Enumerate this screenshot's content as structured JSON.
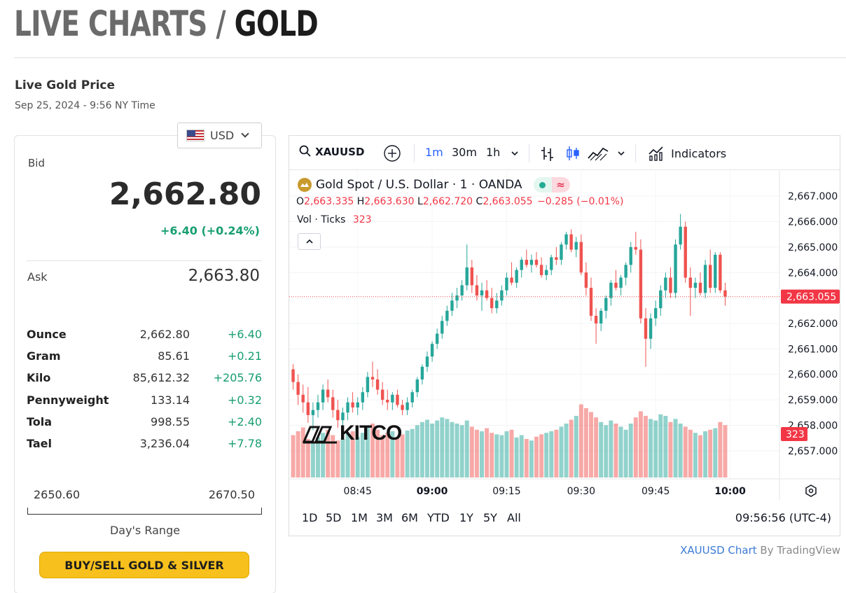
{
  "page": {
    "title_part1": "LIVE CHARTS / ",
    "title_part2": "GOLD"
  },
  "live": {
    "title": "Live Gold Price",
    "timestamp": "Sep 25, 2024 - 9:56 NY Time"
  },
  "currency": {
    "selected": "USD",
    "flag_icon": "us-flag-icon"
  },
  "quote": {
    "bid_label": "Bid",
    "bid": "2,662.80",
    "change": "+6.40 (+0.24%)",
    "ask_label": "Ask",
    "ask": "2,663.80"
  },
  "units": [
    {
      "name": "Ounce",
      "price": "2,662.80",
      "change": "+6.40"
    },
    {
      "name": "Gram",
      "price": "85.61",
      "change": "+0.21"
    },
    {
      "name": "Kilo",
      "price": "85,612.32",
      "change": "+205.76"
    },
    {
      "name": "Pennyweight",
      "price": "133.14",
      "change": "+0.32"
    },
    {
      "name": "Tola",
      "price": "998.55",
      "change": "+2.40"
    },
    {
      "name": "Tael",
      "price": "3,236.04",
      "change": "+7.78"
    }
  ],
  "day_range": {
    "low": "2650.60",
    "high": "2670.50",
    "label": "Day's Range"
  },
  "buy_button": "BUY/SELL GOLD & SILVER",
  "colors": {
    "up": "#26a69a",
    "down": "#ef5350",
    "accent_gold": "#f7c01c",
    "positive_text": "#189e72",
    "active_blue": "#2962ff"
  },
  "toolbar": {
    "symbol": "XAUUSD",
    "intervals": [
      "1m",
      "30m",
      "1h"
    ],
    "active_interval": "1m",
    "indicators_label": "Indicators"
  },
  "legend": {
    "title": "Gold Spot / U.S. Dollar · 1 · OANDA",
    "o_label": "O",
    "o": "2,663.335",
    "h_label": "H",
    "h": "2,663.630",
    "l_label": "L",
    "l": "2,662.720",
    "c_label": "C",
    "c": "2,663.055",
    "chg": "−0.285 (−0.01%)",
    "vol_label": "Vol · Ticks",
    "vol": "323"
  },
  "watermark": "KITCO",
  "chart_data": {
    "type": "candlestick",
    "symbol": "XAUUSD",
    "y_ticks": [
      "2,667.000",
      "2,666.000",
      "2,665.000",
      "2,664.000",
      "2,663.000",
      "2,662.000",
      "2,661.000",
      "2,660.000",
      "2,659.000",
      "2,658.000",
      "2,657.000"
    ],
    "ylim": [
      2656.5,
      2667.5
    ],
    "x_ticks": [
      "08:45",
      "09:00",
      "09:15",
      "09:30",
      "09:45",
      "10:00"
    ],
    "bold_x_ticks": [
      "09:00",
      "10:00"
    ],
    "last_price": 2663.055,
    "last_price_label": "2,663.055",
    "last_volume_label": "323",
    "candles": [
      [
        2660.2,
        2660.4,
        2659.4,
        2659.7
      ],
      [
        2659.7,
        2660.0,
        2658.8,
        2659.2
      ],
      [
        2659.2,
        2659.6,
        2658.5,
        2658.9
      ],
      [
        2658.9,
        2659.5,
        2658.1,
        2658.4
      ],
      [
        2658.4,
        2658.9,
        2657.8,
        2658.6
      ],
      [
        2658.6,
        2659.2,
        2658.3,
        2658.9
      ],
      [
        2658.9,
        2659.6,
        2658.6,
        2659.4
      ],
      [
        2659.4,
        2659.8,
        2658.9,
        2659.1
      ],
      [
        2659.1,
        2659.4,
        2658.3,
        2658.6
      ],
      [
        2658.6,
        2659.0,
        2657.9,
        2658.2
      ],
      [
        2658.2,
        2658.7,
        2657.9,
        2658.5
      ],
      [
        2658.5,
        2659.1,
        2658.2,
        2658.9
      ],
      [
        2658.9,
        2659.3,
        2658.5,
        2658.7
      ],
      [
        2658.7,
        2659.1,
        2658.4,
        2658.9
      ],
      [
        2658.9,
        2659.5,
        2658.6,
        2659.3
      ],
      [
        2659.3,
        2660.1,
        2659.1,
        2659.9
      ],
      [
        2659.9,
        2660.5,
        2659.5,
        2659.8
      ],
      [
        2659.8,
        2660.2,
        2659.2,
        2659.4
      ],
      [
        2659.4,
        2659.7,
        2658.8,
        2659.0
      ],
      [
        2659.0,
        2659.4,
        2658.6,
        2658.9
      ],
      [
        2658.9,
        2659.3,
        2658.6,
        2659.2
      ],
      [
        2659.2,
        2659.4,
        2658.7,
        2658.8
      ],
      [
        2658.8,
        2659.0,
        2658.4,
        2658.6
      ],
      [
        2658.6,
        2659.1,
        2658.4,
        2658.9
      ],
      [
        2658.9,
        2659.4,
        2658.7,
        2659.3
      ],
      [
        2659.3,
        2659.9,
        2659.1,
        2659.8
      ],
      [
        2659.8,
        2660.4,
        2659.6,
        2660.3
      ],
      [
        2660.3,
        2660.9,
        2660.1,
        2660.7
      ],
      [
        2660.7,
        2661.3,
        2660.5,
        2661.2
      ],
      [
        2661.2,
        2661.8,
        2661.0,
        2661.6
      ],
      [
        2661.6,
        2662.3,
        2661.4,
        2662.1
      ],
      [
        2662.1,
        2662.7,
        2661.9,
        2662.5
      ],
      [
        2662.5,
        2663.2,
        2662.3,
        2662.9
      ],
      [
        2662.9,
        2663.4,
        2662.6,
        2663.1
      ],
      [
        2663.1,
        2663.7,
        2662.9,
        2663.5
      ],
      [
        2663.5,
        2665.1,
        2663.3,
        2664.2
      ],
      [
        2664.2,
        2664.5,
        2663.2,
        2663.5
      ],
      [
        2663.5,
        2663.9,
        2662.9,
        2663.1
      ],
      [
        2663.1,
        2663.6,
        2662.5,
        2663.3
      ],
      [
        2663.3,
        2663.7,
        2662.9,
        2663.0
      ],
      [
        2663.0,
        2663.4,
        2662.4,
        2662.6
      ],
      [
        2662.6,
        2663.2,
        2662.4,
        2662.9
      ],
      [
        2662.9,
        2663.5,
        2662.7,
        2663.3
      ],
      [
        2663.3,
        2664.0,
        2663.1,
        2663.8
      ],
      [
        2663.8,
        2664.4,
        2663.5,
        2663.6
      ],
      [
        2663.6,
        2664.2,
        2663.4,
        2664.1
      ],
      [
        2664.1,
        2664.6,
        2663.8,
        2664.5
      ],
      [
        2664.5,
        2664.9,
        2664.2,
        2664.3
      ],
      [
        2664.3,
        2664.7,
        2664.0,
        2664.5
      ],
      [
        2664.5,
        2664.8,
        2664.2,
        2664.3
      ],
      [
        2664.3,
        2664.6,
        2663.8,
        2663.9
      ],
      [
        2663.9,
        2664.3,
        2663.7,
        2664.1
      ],
      [
        2664.1,
        2664.7,
        2663.9,
        2664.6
      ],
      [
        2664.6,
        2665.0,
        2664.3,
        2664.5
      ],
      [
        2664.5,
        2665.2,
        2664.3,
        2665.1
      ],
      [
        2665.1,
        2665.6,
        2664.9,
        2665.5
      ],
      [
        2665.5,
        2665.7,
        2664.8,
        2664.9
      ],
      [
        2664.9,
        2665.4,
        2664.6,
        2665.2
      ],
      [
        2665.2,
        2665.5,
        2663.9,
        2664.0
      ],
      [
        2664.0,
        2664.4,
        2663.1,
        2663.4
      ],
      [
        2663.4,
        2663.8,
        2662.1,
        2662.3
      ],
      [
        2662.3,
        2662.6,
        2661.2,
        2662.0
      ],
      [
        2662.0,
        2662.6,
        2661.7,
        2662.5
      ],
      [
        2662.5,
        2663.1,
        2662.2,
        2663.0
      ],
      [
        2663.0,
        2663.7,
        2662.7,
        2663.6
      ],
      [
        2663.6,
        2664.1,
        2663.3,
        2663.4
      ],
      [
        2663.4,
        2663.9,
        2663.1,
        2663.8
      ],
      [
        2663.8,
        2664.4,
        2663.5,
        2664.3
      ],
      [
        2664.3,
        2665.2,
        2664.0,
        2665.0
      ],
      [
        2665.0,
        2665.6,
        2664.7,
        2664.9
      ],
      [
        2664.9,
        2665.3,
        2662.0,
        2662.2
      ],
      [
        2662.2,
        2662.6,
        2660.3,
        2661.4
      ],
      [
        2661.4,
        2662.4,
        2661.0,
        2662.2
      ],
      [
        2662.2,
        2662.9,
        2661.9,
        2662.6
      ],
      [
        2662.6,
        2663.5,
        2662.3,
        2663.3
      ],
      [
        2663.3,
        2664.0,
        2663.0,
        2663.8
      ],
      [
        2663.8,
        2664.2,
        2663.0,
        2663.2
      ],
      [
        2663.2,
        2665.3,
        2663.0,
        2665.1
      ],
      [
        2665.1,
        2666.3,
        2664.9,
        2665.8
      ],
      [
        2665.8,
        2666.0,
        2663.6,
        2663.8
      ],
      [
        2663.8,
        2664.2,
        2662.3,
        2663.4
      ],
      [
        2663.4,
        2663.8,
        2663.0,
        2663.6
      ],
      [
        2663.6,
        2664.0,
        2663.1,
        2663.2
      ],
      [
        2663.2,
        2664.5,
        2663.0,
        2664.3
      ],
      [
        2664.3,
        2664.9,
        2663.2,
        2663.4
      ],
      [
        2663.4,
        2664.8,
        2663.2,
        2664.7
      ],
      [
        2664.7,
        2664.8,
        2663.2,
        2663.3
      ],
      [
        2663.3,
        2663.6,
        2662.7,
        2663.055
      ]
    ],
    "volumes": [
      0.55,
      0.6,
      0.65,
      0.5,
      0.45,
      0.52,
      0.58,
      0.62,
      0.55,
      0.48,
      0.5,
      0.57,
      0.6,
      0.53,
      0.58,
      0.65,
      0.7,
      0.62,
      0.55,
      0.58,
      0.6,
      0.52,
      0.56,
      0.61,
      0.63,
      0.68,
      0.72,
      0.75,
      0.7,
      0.74,
      0.78,
      0.76,
      0.72,
      0.7,
      0.68,
      0.74,
      0.66,
      0.62,
      0.6,
      0.64,
      0.58,
      0.56,
      0.55,
      0.6,
      0.62,
      0.52,
      0.55,
      0.5,
      0.48,
      0.53,
      0.56,
      0.58,
      0.6,
      0.62,
      0.66,
      0.7,
      0.75,
      0.8,
      0.95,
      0.9,
      0.85,
      0.78,
      0.72,
      0.68,
      0.74,
      0.7,
      0.66,
      0.62,
      0.7,
      0.78,
      0.86,
      0.8,
      0.76,
      0.74,
      0.82,
      0.8,
      0.72,
      0.76,
      0.7,
      0.66,
      0.62,
      0.58,
      0.55,
      0.6,
      0.62,
      0.64,
      0.72,
      0.68
    ]
  },
  "range_buttons": [
    "1D",
    "5D",
    "1M",
    "3M",
    "6M",
    "YTD",
    "1Y",
    "5Y",
    "All"
  ],
  "clock": "09:56:56 (UTC-4)",
  "credit": {
    "link": "XAUUSD Chart",
    "by": " By TradingView"
  }
}
